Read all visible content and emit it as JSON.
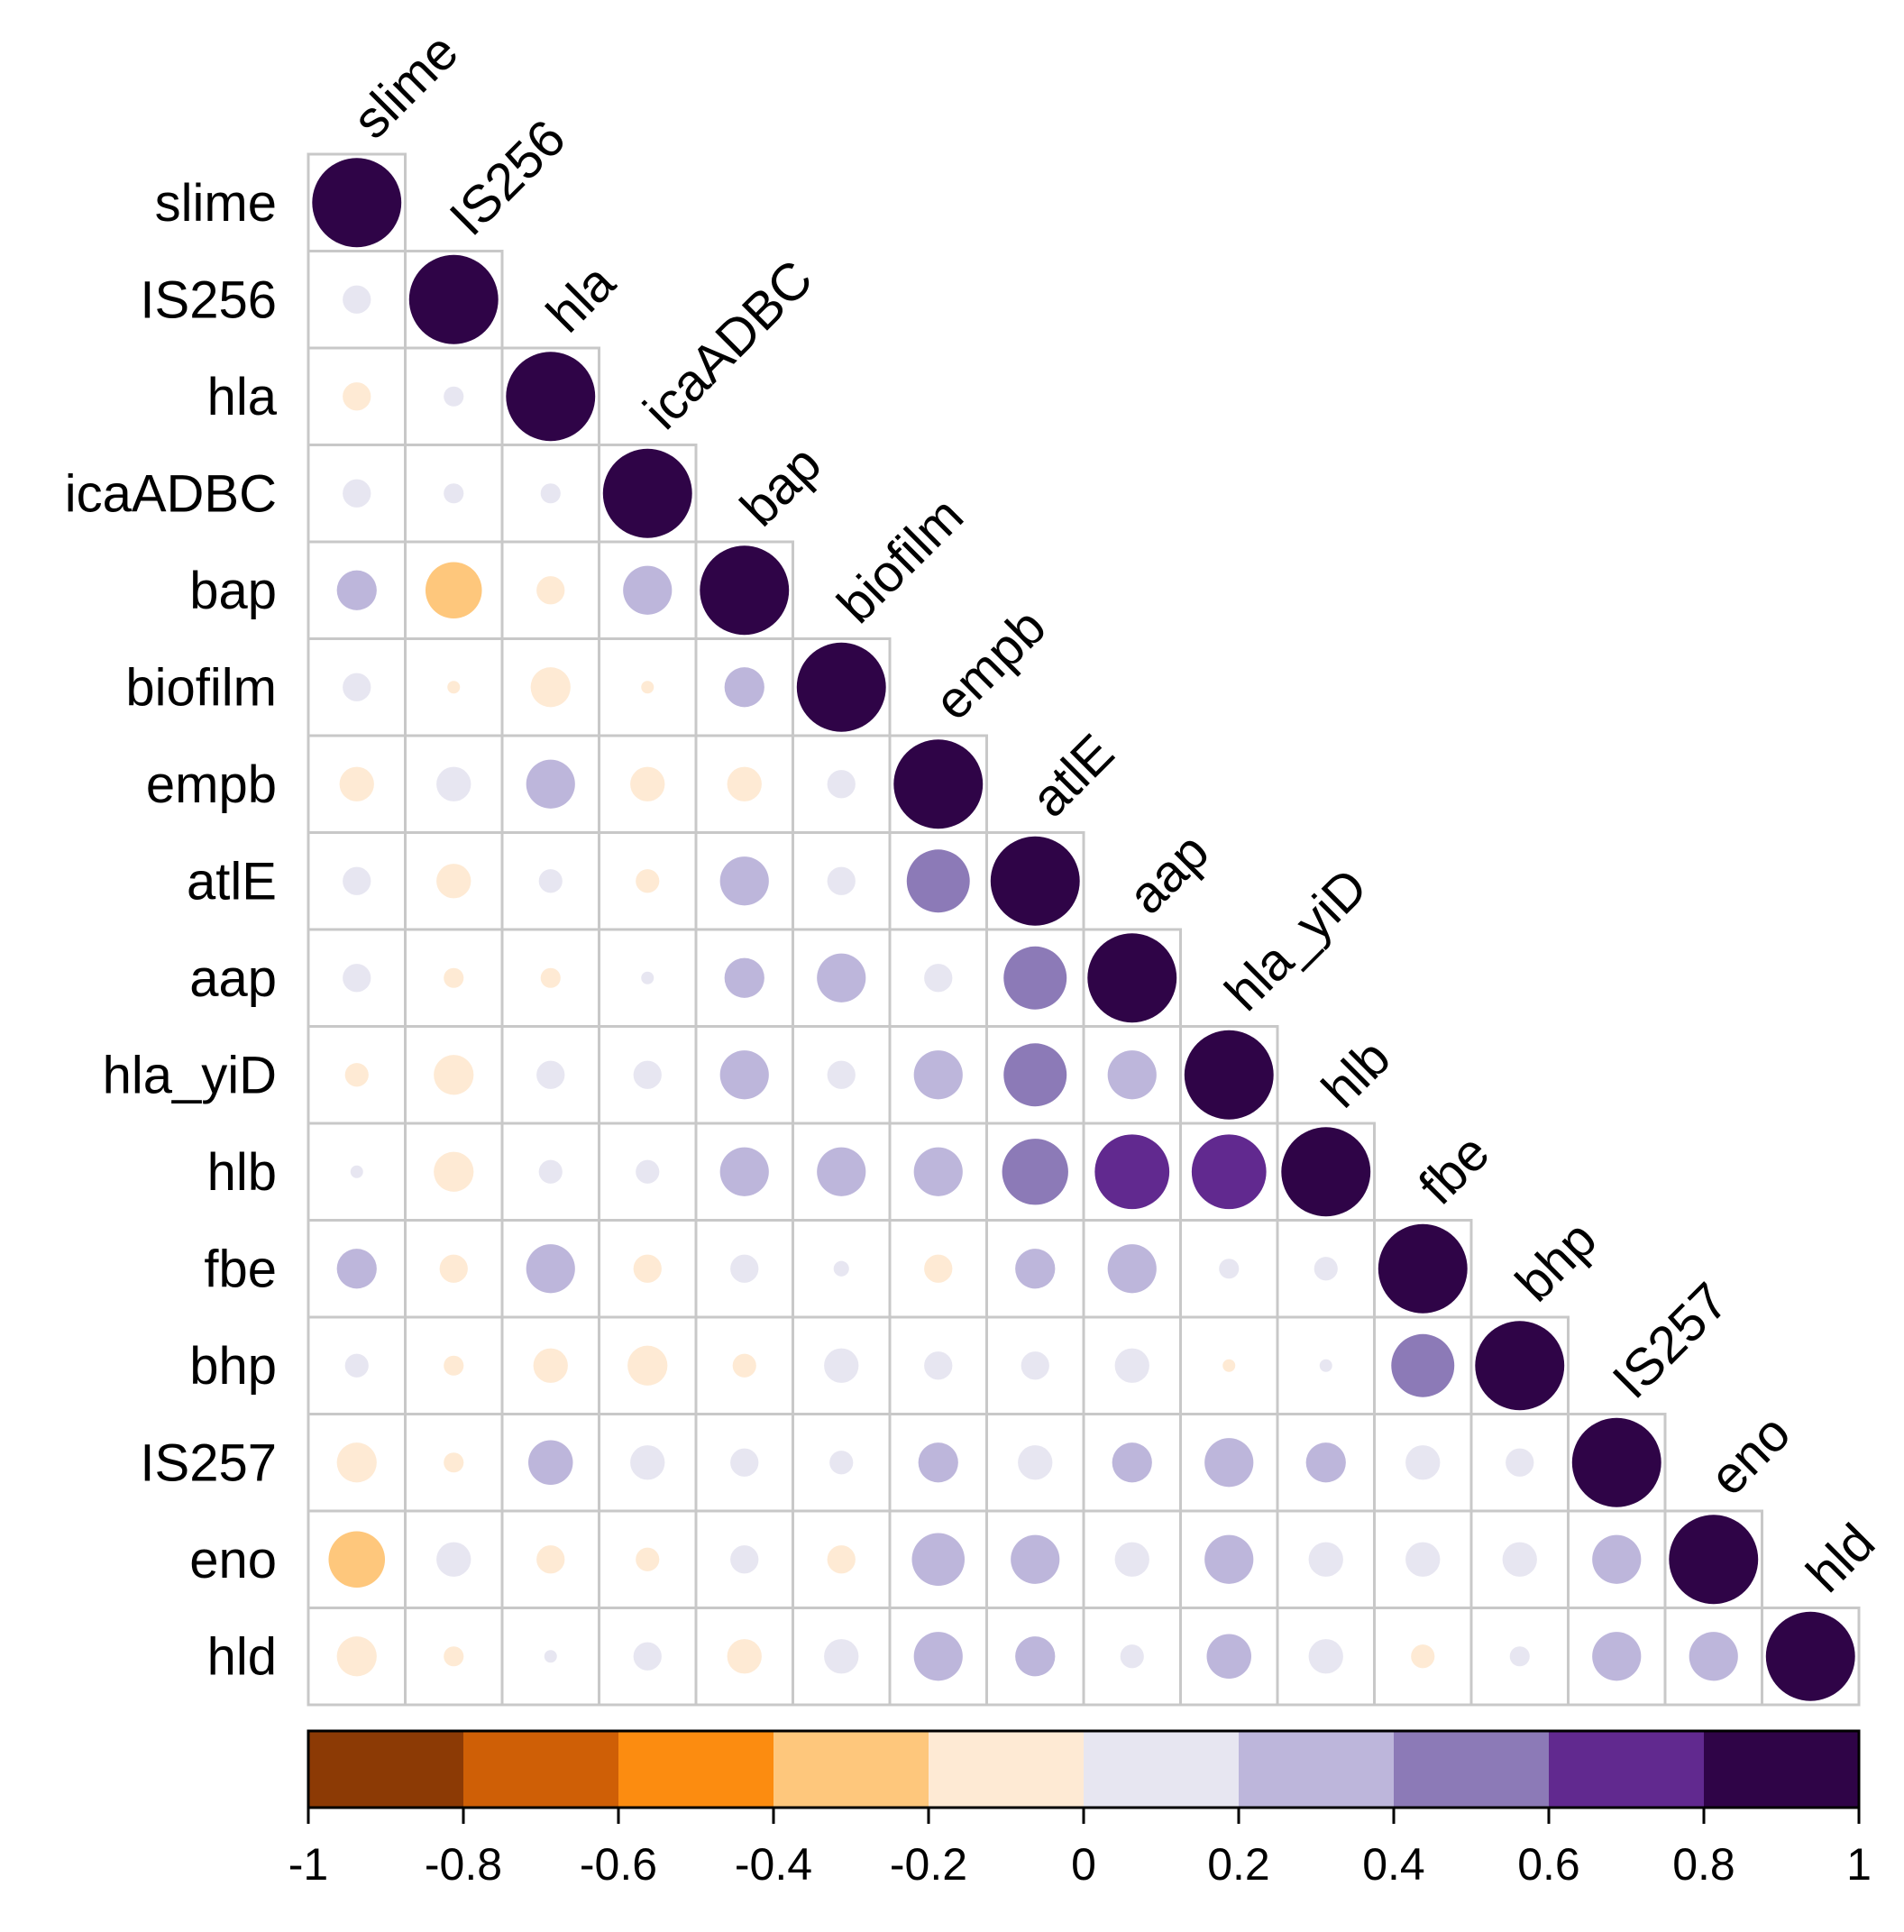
{
  "chart_data": {
    "type": "heatmap",
    "title": "",
    "style": "correlation-circle-lower-triangle",
    "variables": [
      "slime",
      "IS256",
      "hla",
      "icaADBC",
      "bap",
      "biofilm",
      "empb",
      "atlE",
      "aap",
      "hla_yiD",
      "hlb",
      "fbe",
      "bhp",
      "IS257",
      "eno",
      "hld"
    ],
    "matrix": [
      [
        1
      ],
      [
        0.1,
        1
      ],
      [
        -0.1,
        0.05,
        1
      ],
      [
        0.1,
        0.05,
        0.05,
        1
      ],
      [
        0.2,
        -0.4,
        -0.1,
        0.3,
        1
      ],
      [
        0.1,
        -0.02,
        -0.2,
        -0.02,
        0.2,
        1
      ],
      [
        -0.15,
        0.15,
        0.3,
        -0.15,
        -0.15,
        0.1,
        1
      ],
      [
        0.1,
        -0.15,
        0.07,
        -0.07,
        0.3,
        0.1,
        0.5,
        1
      ],
      [
        0.1,
        -0.05,
        -0.05,
        0.02,
        0.2,
        0.3,
        0.1,
        0.5,
        1
      ],
      [
        -0.07,
        -0.2,
        0.1,
        0.1,
        0.3,
        0.1,
        0.3,
        0.5,
        0.3,
        1
      ],
      [
        0.02,
        -0.2,
        0.07,
        0.07,
        0.3,
        0.3,
        0.3,
        0.55,
        0.7,
        0.7,
        1
      ],
      [
        0.2,
        -0.1,
        0.3,
        -0.1,
        0.1,
        0.03,
        -0.1,
        0.2,
        0.3,
        0.05,
        0.07,
        1
      ],
      [
        0.07,
        -0.05,
        -0.15,
        -0.2,
        -0.07,
        0.15,
        0.1,
        0.1,
        0.15,
        -0.02,
        0.02,
        0.5,
        1
      ],
      [
        -0.2,
        -0.05,
        0.25,
        0.15,
        0.1,
        0.07,
        0.2,
        0.15,
        0.2,
        0.3,
        0.2,
        0.15,
        0.1,
        1
      ],
      [
        -0.4,
        0.15,
        -0.1,
        -0.07,
        0.1,
        -0.1,
        0.35,
        0.3,
        0.15,
        0.3,
        0.15,
        0.15,
        0.15,
        0.3,
        1
      ],
      [
        -0.2,
        -0.05,
        0.02,
        0.1,
        -0.15,
        0.15,
        0.3,
        0.2,
        0.07,
        0.25,
        0.15,
        -0.07,
        0.05,
        0.3,
        0.3,
        1
      ]
    ],
    "colorbar": {
      "range": [
        -1,
        1
      ],
      "ticks": [
        "-1",
        "-0.8",
        "-0.6",
        "-0.4",
        "-0.2",
        "0",
        "0.2",
        "0.4",
        "0.6",
        "0.8",
        "1"
      ],
      "colors": [
        "#8c3a05",
        "#cf5f06",
        "#fc8c10",
        "#fec77c",
        "#feead4",
        "#e7e6f1",
        "#bdb6db",
        "#8c7ab7",
        "#61298f",
        "#2f0447"
      ]
    }
  }
}
